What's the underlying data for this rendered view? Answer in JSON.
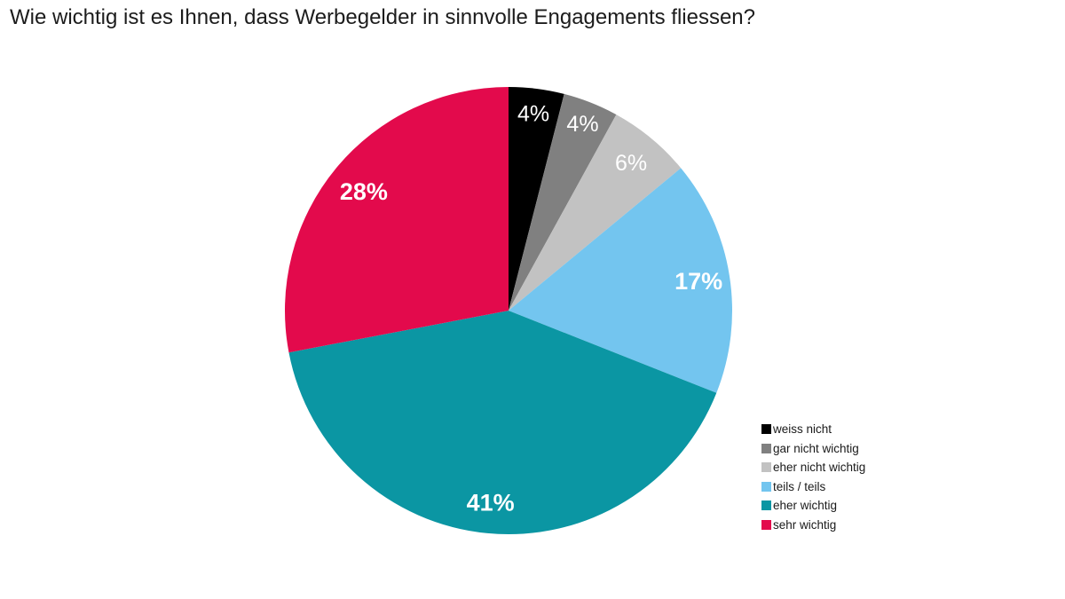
{
  "title": "Wie wichtig ist es Ihnen, dass Werbegelder in sinnvolle Engagements fliessen?",
  "chart_data": {
    "type": "pie",
    "title": "Wie wichtig ist es Ihnen, dass Werbegelder in sinnvolle Engagements fliessen?",
    "unit": "%",
    "direction": "clockwise",
    "start_angle_deg": 0,
    "legend_position": "right",
    "slice_label_color": "#ffffff",
    "background_color": "#ffffff",
    "slices": [
      {
        "label": "weiss nicht",
        "value": 4,
        "display": "4%",
        "color": "#000000"
      },
      {
        "label": "gar nicht wichtig",
        "value": 4,
        "display": "4%",
        "color": "#808080"
      },
      {
        "label": "eher nicht wichtig",
        "value": 6,
        "display": "6%",
        "color": "#c2c2c2"
      },
      {
        "label": "teils / teils",
        "value": 17,
        "display": "17%",
        "color": "#73c5ef"
      },
      {
        "label": "eher wichtig",
        "value": 41,
        "display": "41%",
        "color": "#0b96a3"
      },
      {
        "label": "sehr wichtig",
        "value": 28,
        "display": "28%",
        "color": "#e30a4c"
      }
    ]
  }
}
